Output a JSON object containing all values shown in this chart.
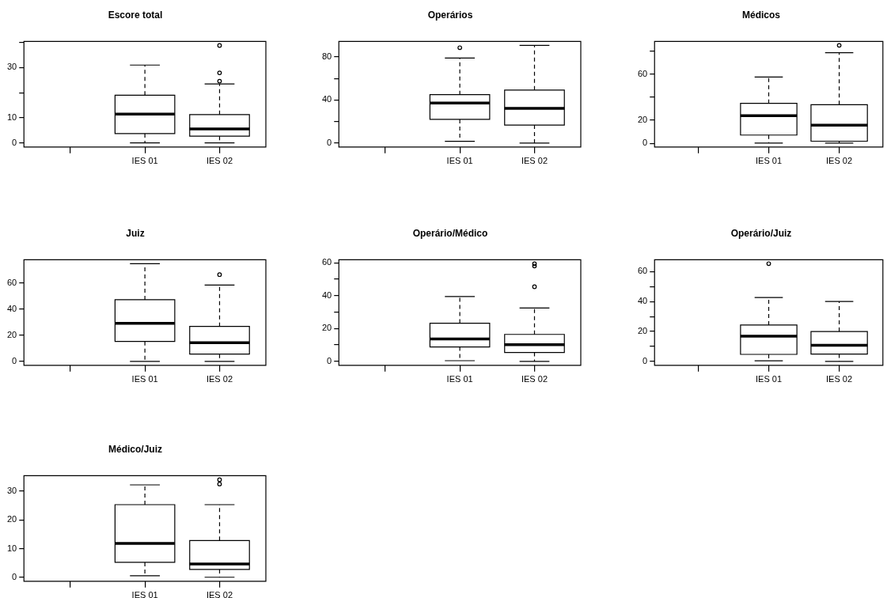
{
  "chart_data": [
    {
      "type": "box",
      "title": "Escore total",
      "categories": [
        null,
        "IES 01",
        "IES 02"
      ],
      "ylim": [
        -1.6,
        40.4
      ],
      "yticks": [
        0,
        10,
        {
          "value": 20,
          "label": null
        },
        30,
        {
          "value": 40,
          "label": null
        }
      ],
      "color": "#000000",
      "boxes": [
        null,
        {
          "low": 0,
          "q1": 3.7,
          "median": 11.5,
          "q3": 19,
          "high": 31
        },
        {
          "low": 0,
          "q1": 2.7,
          "median": 5.6,
          "q3": 11.3,
          "high": 23.5,
          "outliers": [
            24.6,
            27.9,
            38.8
          ]
        }
      ]
    },
    {
      "type": "box",
      "title": "Operários",
      "categories": [
        null,
        "IES 01",
        "IES 02"
      ],
      "ylim": [
        -3.6,
        94.4
      ],
      "yticks": [
        0,
        {
          "value": 20,
          "label": null
        },
        40,
        {
          "value": 60,
          "label": null
        },
        80
      ],
      "color": "#000000",
      "boxes": [
        null,
        {
          "low": 1.7,
          "q1": 22,
          "median": 37.3,
          "q3": 45,
          "high": 79,
          "outliers": [
            88.6
          ]
        },
        {
          "low": 0,
          "q1": 16.8,
          "median": 32.2,
          "q3": 49.3,
          "high": 90.8
        }
      ]
    },
    {
      "type": "box",
      "title": "Médicos",
      "categories": [
        null,
        "IES 01",
        "IES 02"
      ],
      "ylim": [
        -3.1,
        88.2
      ],
      "yticks": [
        0,
        20,
        {
          "value": 40,
          "label": null
        },
        60,
        {
          "value": 80,
          "label": null
        }
      ],
      "color": "#000000",
      "boxes": [
        null,
        {
          "low": 0.3,
          "q1": 7.2,
          "median": 24,
          "q3": 34.6,
          "high": 57.4
        },
        {
          "low": 0.3,
          "q1": 1.9,
          "median": 15.7,
          "q3": 33.5,
          "high": 78.5,
          "outliers": [
            84.8
          ]
        }
      ]
    },
    {
      "type": "box",
      "title": "Juiz",
      "categories": [
        null,
        "IES 01",
        "IES 02"
      ],
      "ylim": [
        -3,
        78
      ],
      "yticks": [
        0,
        20,
        40,
        60
      ],
      "color": "#000000",
      "boxes": [
        null,
        {
          "low": 0,
          "q1": 15.3,
          "median": 29.2,
          "q3": 47.3,
          "high": 75
        },
        {
          "low": 0,
          "q1": 5.6,
          "median": 14.4,
          "q3": 26.8,
          "high": 58.6,
          "outliers": [
            66.6
          ]
        }
      ]
    },
    {
      "type": "box",
      "title": "Operário/Médico",
      "categories": [
        null,
        "IES 01",
        "IES 02"
      ],
      "ylim": [
        -2.4,
        61.8
      ],
      "yticks": [
        0,
        {
          "value": 10,
          "label": null
        },
        20,
        {
          "value": 30,
          "label": null
        },
        40,
        {
          "value": 50,
          "label": null
        },
        60
      ],
      "color": "#000000",
      "boxes": [
        null,
        {
          "low": 0.4,
          "q1": 8.8,
          "median": 13.6,
          "q3": 23.2,
          "high": 39.4
        },
        {
          "low": 0,
          "q1": 5.4,
          "median": 10.1,
          "q3": 16.4,
          "high": 32.5,
          "outliers": [
            45.4,
            58,
            59.4
          ]
        }
      ]
    },
    {
      "type": "box",
      "title": "Operário/Juiz",
      "categories": [
        null,
        "IES 01",
        "IES 02"
      ],
      "ylim": [
        -2.6,
        67.9
      ],
      "yticks": [
        0,
        {
          "value": 10,
          "label": null
        },
        20,
        {
          "value": 30,
          "label": null
        },
        40,
        {
          "value": 50,
          "label": null
        },
        60
      ],
      "color": "#000000",
      "boxes": [
        null,
        {
          "low": 0.4,
          "q1": 4.7,
          "median": 16.9,
          "q3": 24.3,
          "high": 42.7,
          "outliers": [
            65.3
          ]
        },
        {
          "low": 0,
          "q1": 4.9,
          "median": 10.8,
          "q3": 20,
          "high": 40
        }
      ]
    },
    {
      "type": "box",
      "title": "Médico/Juiz",
      "categories": [
        null,
        "IES 01",
        "IES 02"
      ],
      "ylim": [
        -1.4,
        35.4
      ],
      "yticks": [
        0,
        10,
        20,
        30
      ],
      "color": "#000000",
      "boxes": [
        null,
        {
          "low": 0.5,
          "q1": 5.2,
          "median": 11.8,
          "q3": 25.3,
          "high": 32.2
        },
        {
          "low": 0,
          "q1": 2.7,
          "median": 4.6,
          "q3": 12.8,
          "high": 25.3,
          "outliers": [
            32.5,
            34
          ]
        }
      ]
    }
  ]
}
